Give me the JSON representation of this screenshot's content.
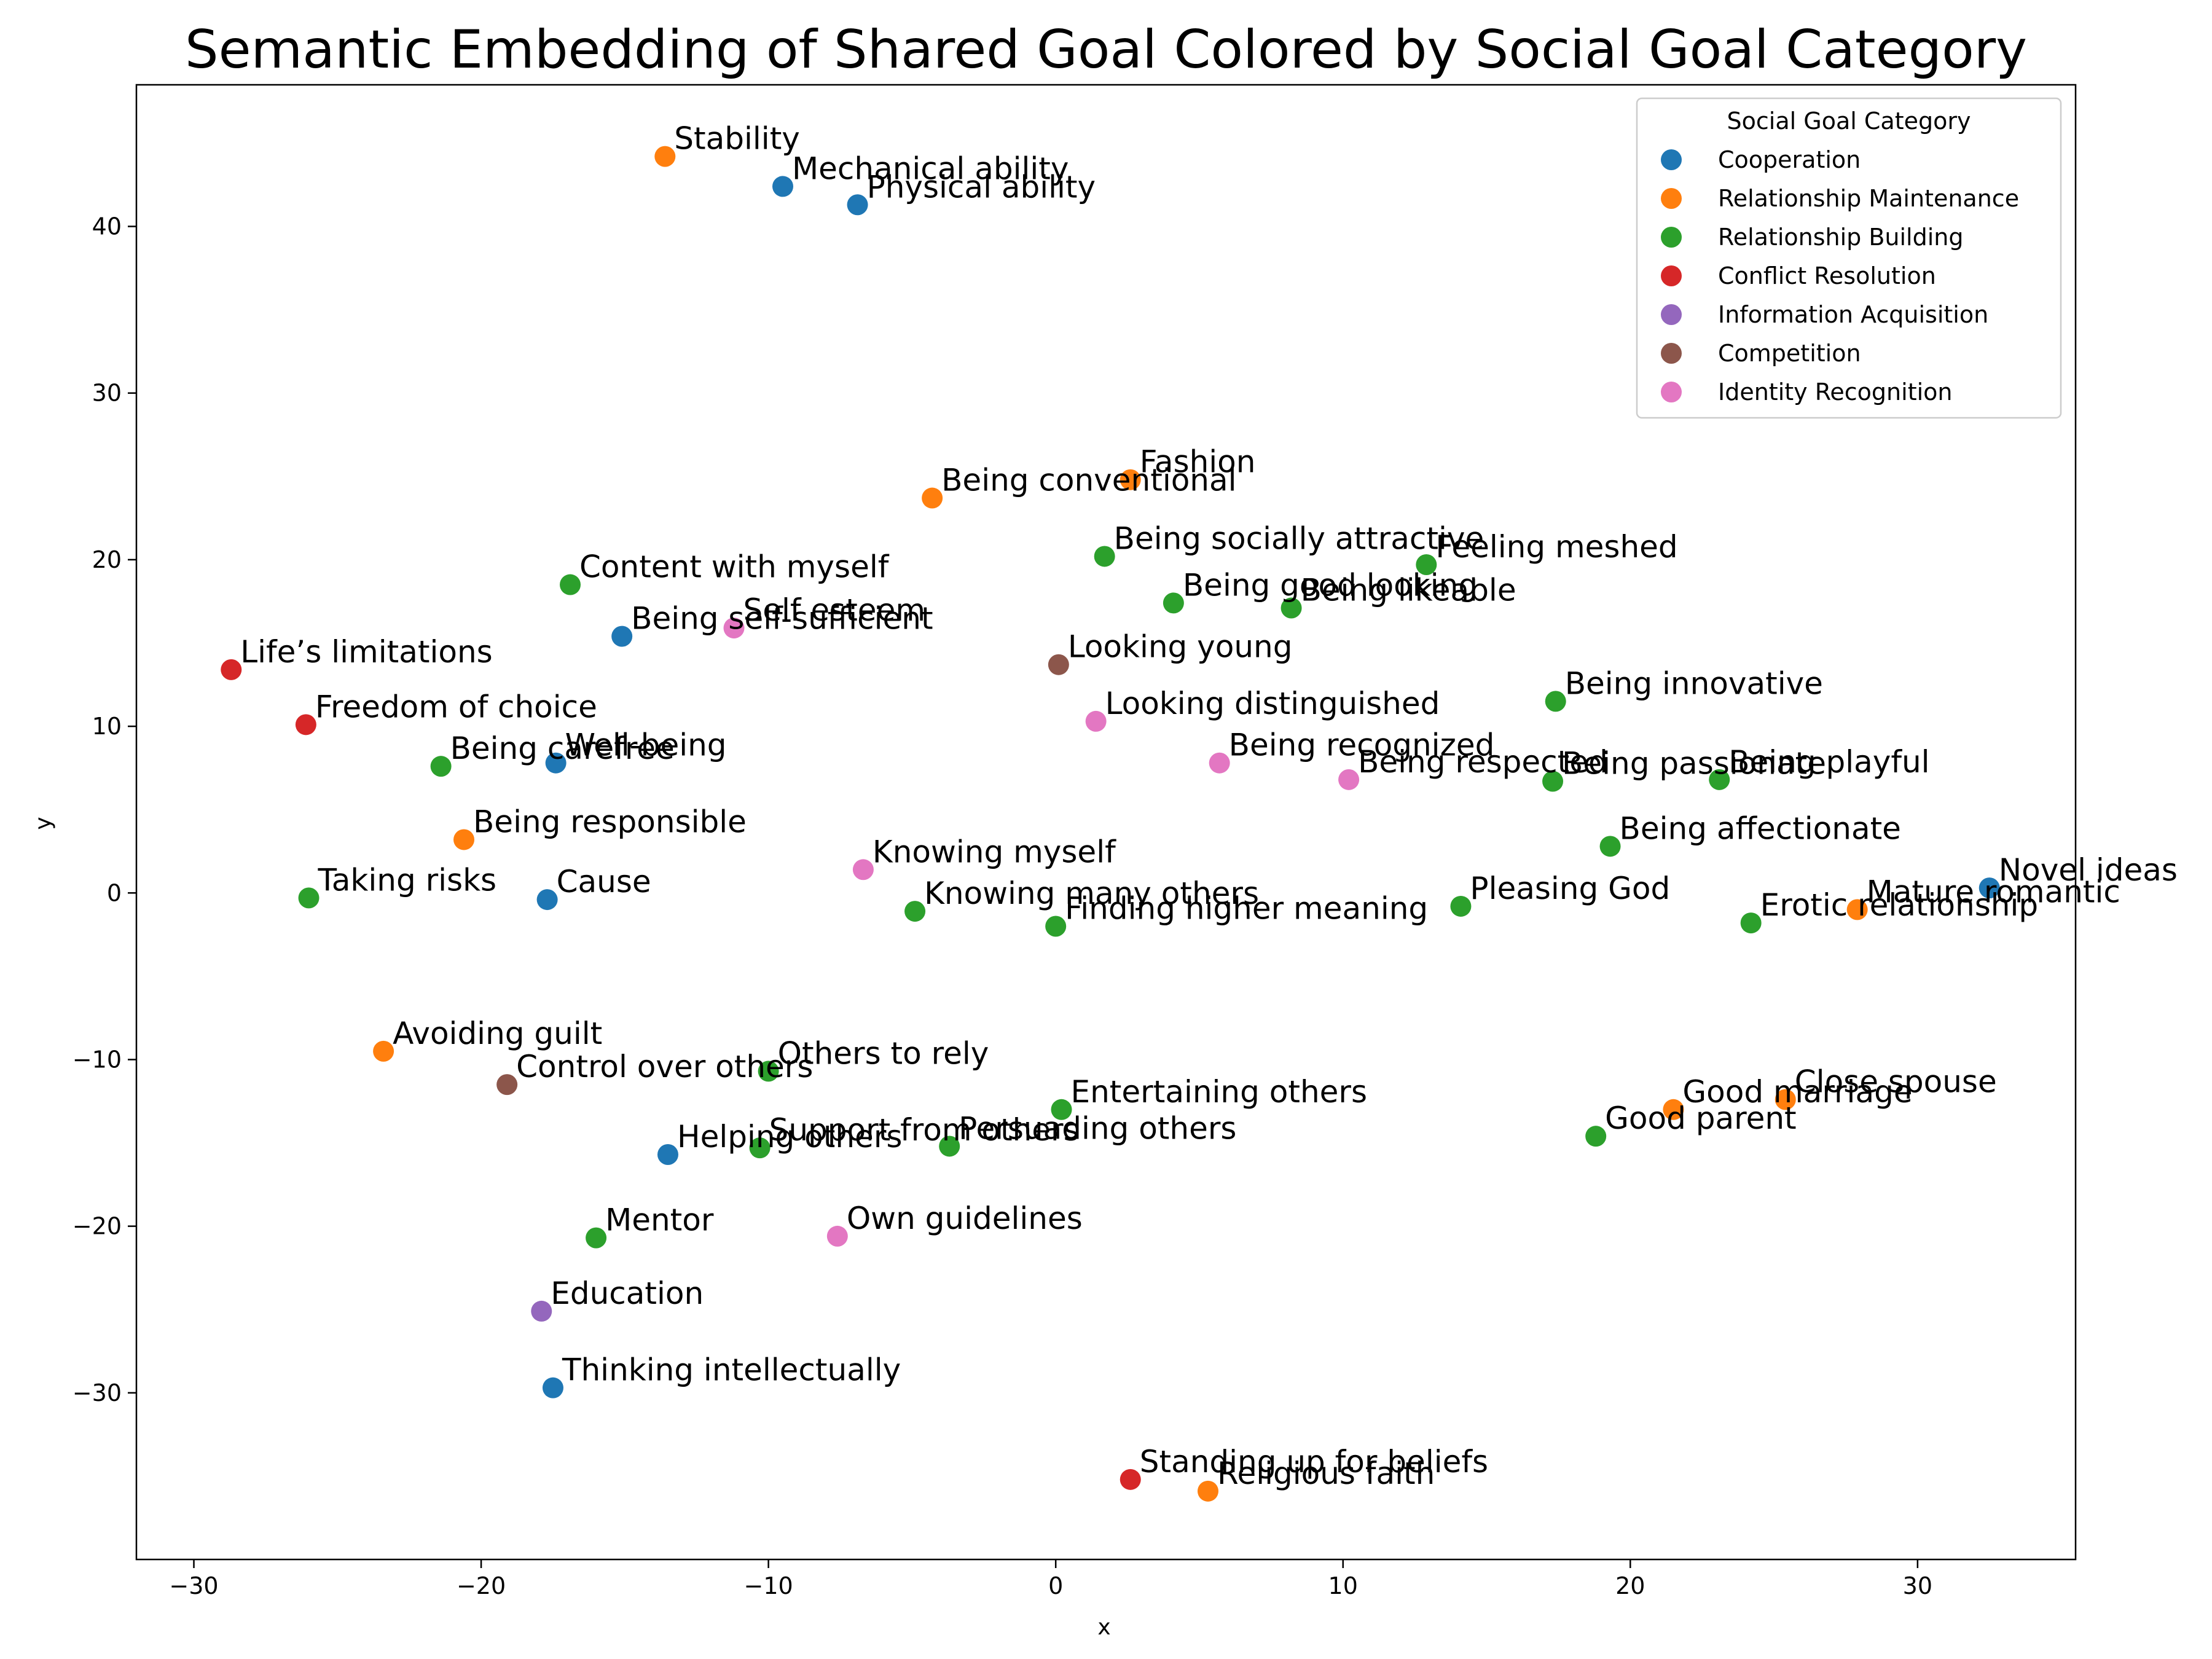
{
  "chart_data": {
    "type": "scatter",
    "title": "Semantic Embedding of Shared Goal Colored by Social Goal Category",
    "xlabel": "x",
    "ylabel": "y",
    "xlim": [
      -32,
      35.5
    ],
    "ylim": [
      -40,
      48.5
    ],
    "xticks": [
      -30,
      -20,
      -10,
      0,
      10,
      20,
      30
    ],
    "yticks": [
      -30,
      -20,
      -10,
      0,
      10,
      20,
      30,
      40
    ],
    "grid": false,
    "legend": {
      "title": "Social Goal Category",
      "placement": "top-right",
      "entries": [
        {
          "name": "Cooperation",
          "color": "#1f77b4"
        },
        {
          "name": "Relationship Maintenance",
          "color": "#ff7f0e"
        },
        {
          "name": "Relationship Building",
          "color": "#2ca02c"
        },
        {
          "name": "Conflict Resolution",
          "color": "#d62728"
        },
        {
          "name": "Information Acquisition",
          "color": "#9467bd"
        },
        {
          "name": "Competition",
          "color": "#8c564b"
        },
        {
          "name": "Identity Recognition",
          "color": "#e377c2"
        }
      ]
    },
    "points": [
      {
        "label": "Stability",
        "x": -13.6,
        "y": 44.2,
        "category": "Relationship Maintenance"
      },
      {
        "label": "Mechanical ability",
        "x": -9.5,
        "y": 42.4,
        "category": "Cooperation"
      },
      {
        "label": "Physical ability",
        "x": -6.9,
        "y": 41.3,
        "category": "Cooperation"
      },
      {
        "label": "Fashion",
        "x": 2.6,
        "y": 24.8,
        "category": "Relationship Maintenance"
      },
      {
        "label": "Being conventional",
        "x": -4.3,
        "y": 23.7,
        "category": "Relationship Maintenance"
      },
      {
        "label": "Being socially attractive",
        "x": 1.7,
        "y": 20.2,
        "category": "Relationship Building"
      },
      {
        "label": "Feeling meshed",
        "x": 12.9,
        "y": 19.7,
        "category": "Relationship Building"
      },
      {
        "label": "Content with myself",
        "x": -16.9,
        "y": 18.5,
        "category": "Relationship Building"
      },
      {
        "label": "Being good looking",
        "x": 4.1,
        "y": 17.4,
        "category": "Relationship Building"
      },
      {
        "label": "Being likeable",
        "x": 8.2,
        "y": 17.1,
        "category": "Relationship Building"
      },
      {
        "label": "Self esteem",
        "x": -11.2,
        "y": 15.9,
        "category": "Identity Recognition"
      },
      {
        "label": "Being self-sufficient",
        "x": -15.1,
        "y": 15.4,
        "category": "Cooperation"
      },
      {
        "label": "Looking young",
        "x": 0.1,
        "y": 13.7,
        "category": "Competition"
      },
      {
        "label": "Life’s limitations",
        "x": -28.7,
        "y": 13.4,
        "category": "Conflict Resolution"
      },
      {
        "label": "Being innovative",
        "x": 17.4,
        "y": 11.5,
        "category": "Relationship Building"
      },
      {
        "label": "Looking distinguished",
        "x": 1.4,
        "y": 10.3,
        "category": "Identity Recognition"
      },
      {
        "label": "Freedom of choice",
        "x": -26.1,
        "y": 10.1,
        "category": "Conflict Resolution"
      },
      {
        "label": "Being carefree",
        "x": -21.4,
        "y": 7.6,
        "category": "Relationship Building"
      },
      {
        "label": "Well-being",
        "x": -17.4,
        "y": 7.8,
        "category": "Cooperation"
      },
      {
        "label": "Being recognized",
        "x": 5.7,
        "y": 7.8,
        "category": "Identity Recognition"
      },
      {
        "label": "Being respected",
        "x": 10.2,
        "y": 6.8,
        "category": "Identity Recognition"
      },
      {
        "label": "Being passionate",
        "x": 17.3,
        "y": 6.7,
        "category": "Relationship Building"
      },
      {
        "label": "Being playful",
        "x": 23.1,
        "y": 6.8,
        "category": "Relationship Building"
      },
      {
        "label": "Being responsible",
        "x": -20.6,
        "y": 3.2,
        "category": "Relationship Maintenance"
      },
      {
        "label": "Being affectionate",
        "x": 19.3,
        "y": 2.8,
        "category": "Relationship Building"
      },
      {
        "label": "Knowing myself",
        "x": -6.7,
        "y": 1.4,
        "category": "Identity Recognition"
      },
      {
        "label": "Novel ideas",
        "x": 32.5,
        "y": 0.3,
        "category": "Cooperation"
      },
      {
        "label": "Taking risks",
        "x": -26.0,
        "y": -0.3,
        "category": "Relationship Building"
      },
      {
        "label": "Cause",
        "x": -17.7,
        "y": -0.4,
        "category": "Cooperation"
      },
      {
        "label": "Knowing many others",
        "x": -4.9,
        "y": -1.1,
        "category": "Relationship Building"
      },
      {
        "label": "Pleasing God",
        "x": 14.1,
        "y": -0.8,
        "category": "Relationship Building"
      },
      {
        "label": "Mature romantic",
        "x": 27.9,
        "y": -1.0,
        "category": "Relationship Maintenance"
      },
      {
        "label": "Finding higher meaning",
        "x": 0.0,
        "y": -2.0,
        "category": "Relationship Building"
      },
      {
        "label": "Erotic relationship",
        "x": 24.2,
        "y": -1.8,
        "category": "Relationship Building"
      },
      {
        "label": "Avoiding guilt",
        "x": -23.4,
        "y": -9.5,
        "category": "Relationship Maintenance"
      },
      {
        "label": "Others to rely",
        "x": -10.0,
        "y": -10.7,
        "category": "Relationship Building"
      },
      {
        "label": "Control over others",
        "x": -19.1,
        "y": -11.5,
        "category": "Competition"
      },
      {
        "label": "Close spouse",
        "x": 25.4,
        "y": -12.4,
        "category": "Relationship Maintenance"
      },
      {
        "label": "Entertaining others",
        "x": 0.2,
        "y": -13.0,
        "category": "Relationship Building"
      },
      {
        "label": "Good marriage",
        "x": 21.5,
        "y": -13.0,
        "category": "Relationship Maintenance"
      },
      {
        "label": "Good parent",
        "x": 18.8,
        "y": -14.6,
        "category": "Relationship Building"
      },
      {
        "label": "Support from others",
        "x": -10.3,
        "y": -15.3,
        "category": "Relationship Building"
      },
      {
        "label": "Persuading others",
        "x": -3.7,
        "y": -15.2,
        "category": "Relationship Building"
      },
      {
        "label": "Helping others",
        "x": -13.5,
        "y": -15.7,
        "category": "Cooperation"
      },
      {
        "label": "Mentor",
        "x": -16.0,
        "y": -20.7,
        "category": "Relationship Building"
      },
      {
        "label": "Own guidelines",
        "x": -7.6,
        "y": -20.6,
        "category": "Identity Recognition"
      },
      {
        "label": "Education",
        "x": -17.9,
        "y": -25.1,
        "category": "Information Acquisition"
      },
      {
        "label": "Thinking intellectually",
        "x": -17.5,
        "y": -29.7,
        "category": "Cooperation"
      },
      {
        "label": "Standing up for beliefs",
        "x": 2.6,
        "y": -35.2,
        "category": "Conflict Resolution"
      },
      {
        "label": "Religious faith",
        "x": 5.3,
        "y": -35.9,
        "category": "Relationship Maintenance"
      }
    ]
  }
}
